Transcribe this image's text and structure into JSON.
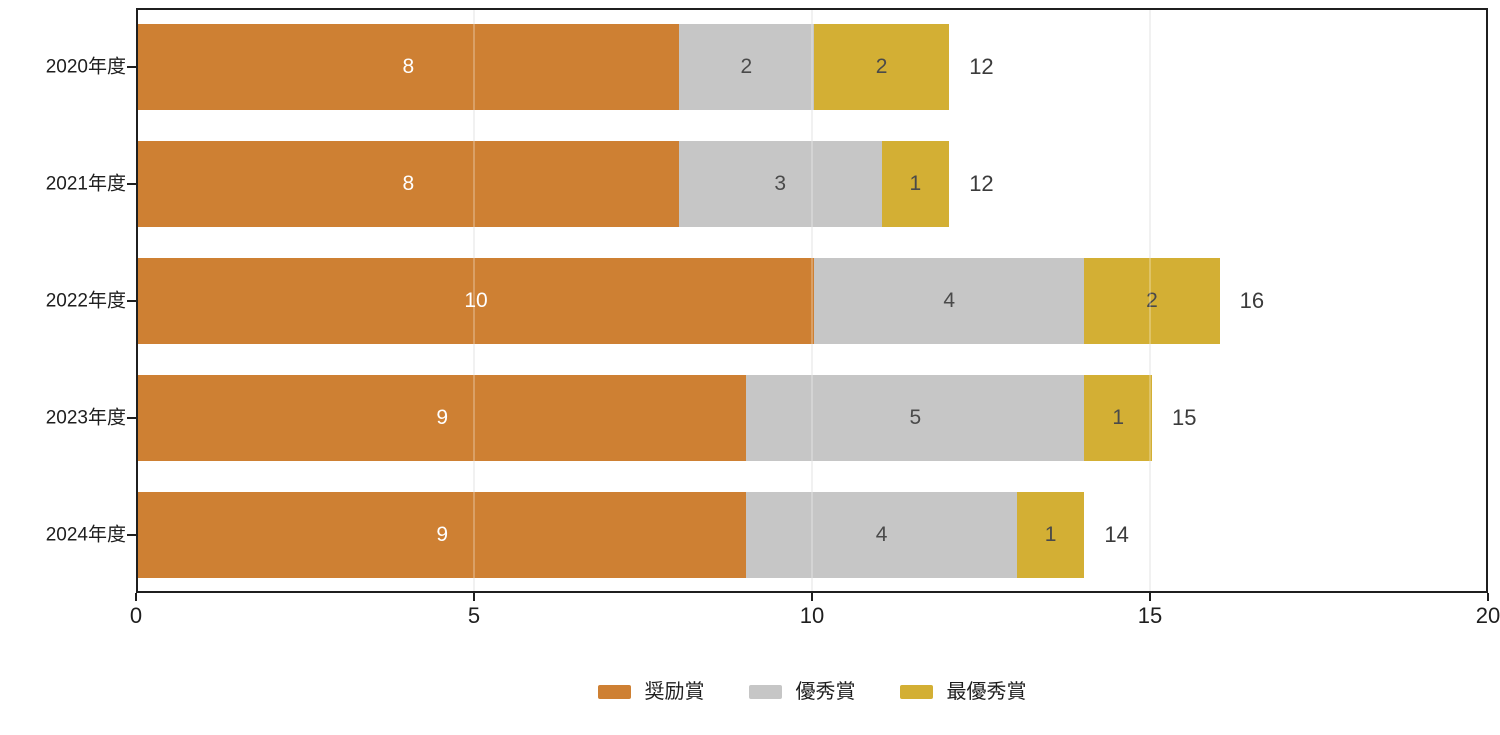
{
  "chart_data": {
    "type": "bar",
    "orientation": "horizontal",
    "stacked": true,
    "title": "",
    "xlabel": "",
    "ylabel": "",
    "categories": [
      "2020年度",
      "2021年度",
      "2022年度",
      "2023年度",
      "2024年度"
    ],
    "series": [
      {
        "name": "奨励賞",
        "color": "#CE8033",
        "label_color": "#ffffff",
        "values": [
          8,
          8,
          10,
          9,
          9
        ]
      },
      {
        "name": "優秀賞",
        "color": "#C6C6C6",
        "label_color": "#4a4a4a",
        "values": [
          2,
          3,
          4,
          5,
          4
        ]
      },
      {
        "name": "最優秀賞",
        "color": "#D3AF34",
        "label_color": "#4a4a4a",
        "values": [
          2,
          1,
          2,
          1,
          1
        ]
      }
    ],
    "totals": [
      12,
      12,
      16,
      15,
      14
    ],
    "x_ticks": [
      0,
      5,
      10,
      15,
      20
    ],
    "xlim": [
      0,
      20
    ],
    "grid": "vertical",
    "grid_color": "#ececec",
    "axis_color": "#1f1f1f",
    "tick_label_color": "#1e1e1e",
    "total_label_color": "#3b3b3b",
    "legend_position": "bottom"
  }
}
